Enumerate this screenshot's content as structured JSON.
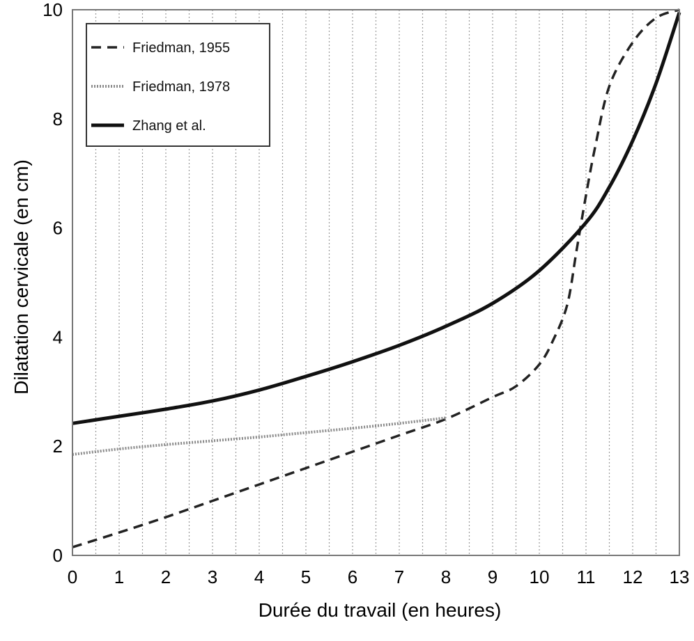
{
  "chart_data": {
    "type": "line",
    "title": "",
    "xlabel": "Durée du travail (en heures)",
    "ylabel": "Dilatation cervicale (en cm)",
    "xlim": [
      0,
      13
    ],
    "ylim": [
      0,
      10
    ],
    "xticks": [
      "0",
      "1",
      "2",
      "3",
      "4",
      "5",
      "6",
      "7",
      "8",
      "9",
      "10",
      "11",
      "12",
      "13"
    ],
    "yticks": [
      "0",
      "2",
      "4",
      "6",
      "8",
      "10"
    ],
    "grid": "vertical dotted lines every 0.5 h",
    "legend_position": "top-left",
    "series": [
      {
        "name": "Friedman, 1955",
        "style": "dashed",
        "x": [
          0,
          1,
          2,
          3,
          4,
          5,
          6,
          7,
          8,
          9,
          9.5,
          10,
          10.3,
          10.6,
          10.8,
          11,
          11.2,
          11.5,
          12,
          12.5,
          13
        ],
        "y": [
          0.15,
          0.42,
          0.7,
          1.0,
          1.3,
          1.6,
          1.9,
          2.2,
          2.5,
          2.9,
          3.1,
          3.5,
          3.95,
          4.6,
          5.6,
          6.6,
          7.5,
          8.6,
          9.4,
          9.85,
          10.0
        ]
      },
      {
        "name": "Friedman, 1978",
        "style": "dotted",
        "x": [
          0,
          1,
          2,
          3,
          4,
          5,
          6,
          7,
          8
        ],
        "y": [
          1.85,
          1.95,
          2.03,
          2.1,
          2.17,
          2.25,
          2.33,
          2.42,
          2.52
        ]
      },
      {
        "name": "Zhang et al.",
        "style": "solid",
        "x": [
          0,
          1,
          2,
          3,
          4,
          5,
          6,
          7,
          8,
          9,
          10,
          11,
          11.5,
          12,
          12.5,
          13
        ],
        "y": [
          2.42,
          2.55,
          2.68,
          2.83,
          3.03,
          3.28,
          3.55,
          3.85,
          4.2,
          4.62,
          5.22,
          6.1,
          6.75,
          7.6,
          8.65,
          9.95
        ]
      }
    ]
  }
}
